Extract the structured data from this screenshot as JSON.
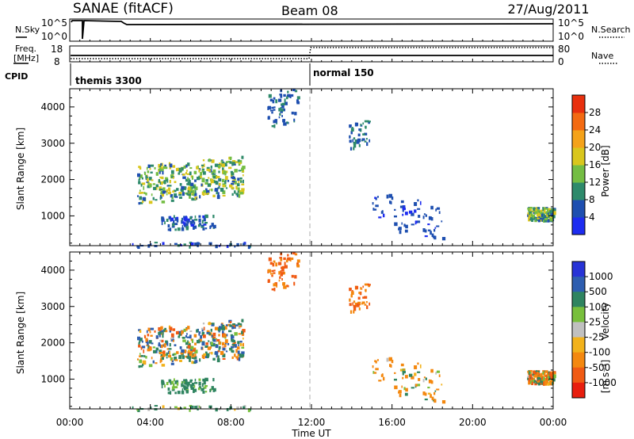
{
  "header": {
    "title": "SANAE (fitACF)",
    "beam": "Beam 08",
    "date": "27/Aug/2011"
  },
  "noise_panel": {
    "left_label": "N.Sky",
    "right_label": "N.Search",
    "left_top_tick": "10^5",
    "left_bottom_tick": "10^0",
    "right_top_tick": "10^5",
    "right_bottom_tick": "10^0"
  },
  "freq_panel": {
    "left_label_line1": "Freq.",
    "left_label_line2": "[MHz]",
    "right_label": "Nave",
    "left_top_tick": "18",
    "left_bottom_tick": "8",
    "right_top_tick": "80",
    "right_bottom_tick": "0"
  },
  "cpid_panel": {
    "label": "CPID",
    "modes": [
      {
        "name": "themis 3300",
        "start_hour": 0
      },
      {
        "name": "normal 150",
        "start_hour": 12
      }
    ]
  },
  "x_axis": {
    "label": "Time UT",
    "ticks": [
      "00:00",
      "04:00",
      "08:00",
      "12:00",
      "16:00",
      "20:00",
      "00:00"
    ],
    "range_hours": [
      0,
      24
    ]
  },
  "range_axis": {
    "label": "Slant Range [km]",
    "ticks": [
      "1000",
      "2000",
      "3000",
      "4000"
    ],
    "range_km": [
      180,
      4500
    ]
  },
  "power_colorbar": {
    "label": "Power [dB]",
    "ticks": [
      "4",
      "8",
      "12",
      "16",
      "20",
      "24",
      "28"
    ],
    "colors": [
      "#1d2cf0",
      "#1e4fb0",
      "#2e8a6b",
      "#74bd43",
      "#d9c61d",
      "#f4a21a",
      "#f36a12",
      "#e8300e"
    ]
  },
  "velocity_colorbar": {
    "label": "Velocity",
    "unit": "[m s⁻¹]",
    "ticks": [
      "1000",
      "500",
      "100",
      "25",
      "-25",
      "-100",
      "-500",
      "-1000"
    ],
    "colors": [
      "#2733d6",
      "#2e5eb0",
      "#2f8460",
      "#78bf3c",
      "#c0c0c0",
      "#f2b21b",
      "#f4880f",
      "#f05a13",
      "#e81e0e"
    ]
  },
  "chart_data": {
    "type": "heatmap",
    "x_unit": "hours UT",
    "y_unit": "km",
    "scatter_regions": [
      {
        "t0": 3.3,
        "t1": 8.6,
        "r0": 1350,
        "r1": 2400,
        "slope_km_per_h": 100,
        "density": 380,
        "power": [
          6,
          20
        ],
        "velocity": [
          -700,
          900
        ]
      },
      {
        "t0": 4.5,
        "t1": 7.2,
        "r0": 650,
        "r1": 1050,
        "slope_km_per_h": 0,
        "density": 80,
        "power": [
          3,
          10
        ],
        "velocity": [
          60,
          250
        ]
      },
      {
        "t0": 3.0,
        "t1": 9.0,
        "r0": 150,
        "r1": 300,
        "slope_km_per_h": 0,
        "density": 40,
        "power": [
          3,
          9
        ],
        "velocity": [
          -60,
          200
        ]
      },
      {
        "t0": 9.8,
        "t1": 11.3,
        "r0": 3400,
        "r1": 4400,
        "slope_km_per_h": 300,
        "density": 60,
        "power": [
          4,
          10
        ],
        "velocity": [
          -900,
          -300
        ]
      },
      {
        "t0": 13.7,
        "t1": 14.9,
        "r0": 2800,
        "r1": 3500,
        "slope_km_per_h": 400,
        "density": 40,
        "power": [
          4,
          12
        ],
        "velocity": [
          -700,
          -300
        ]
      },
      {
        "t0": 15.0,
        "t1": 18.5,
        "r0": 700,
        "r1": 1700,
        "slope_km_per_h": -200,
        "density": 70,
        "power": [
          3,
          8
        ],
        "velocity": [
          -500,
          200
        ]
      },
      {
        "t0": 22.7,
        "t1": 24.0,
        "r0": 900,
        "r1": 1250,
        "slope_km_per_h": 0,
        "density": 150,
        "power": [
          6,
          20
        ],
        "velocity": [
          -900,
          400
        ]
      }
    ]
  }
}
